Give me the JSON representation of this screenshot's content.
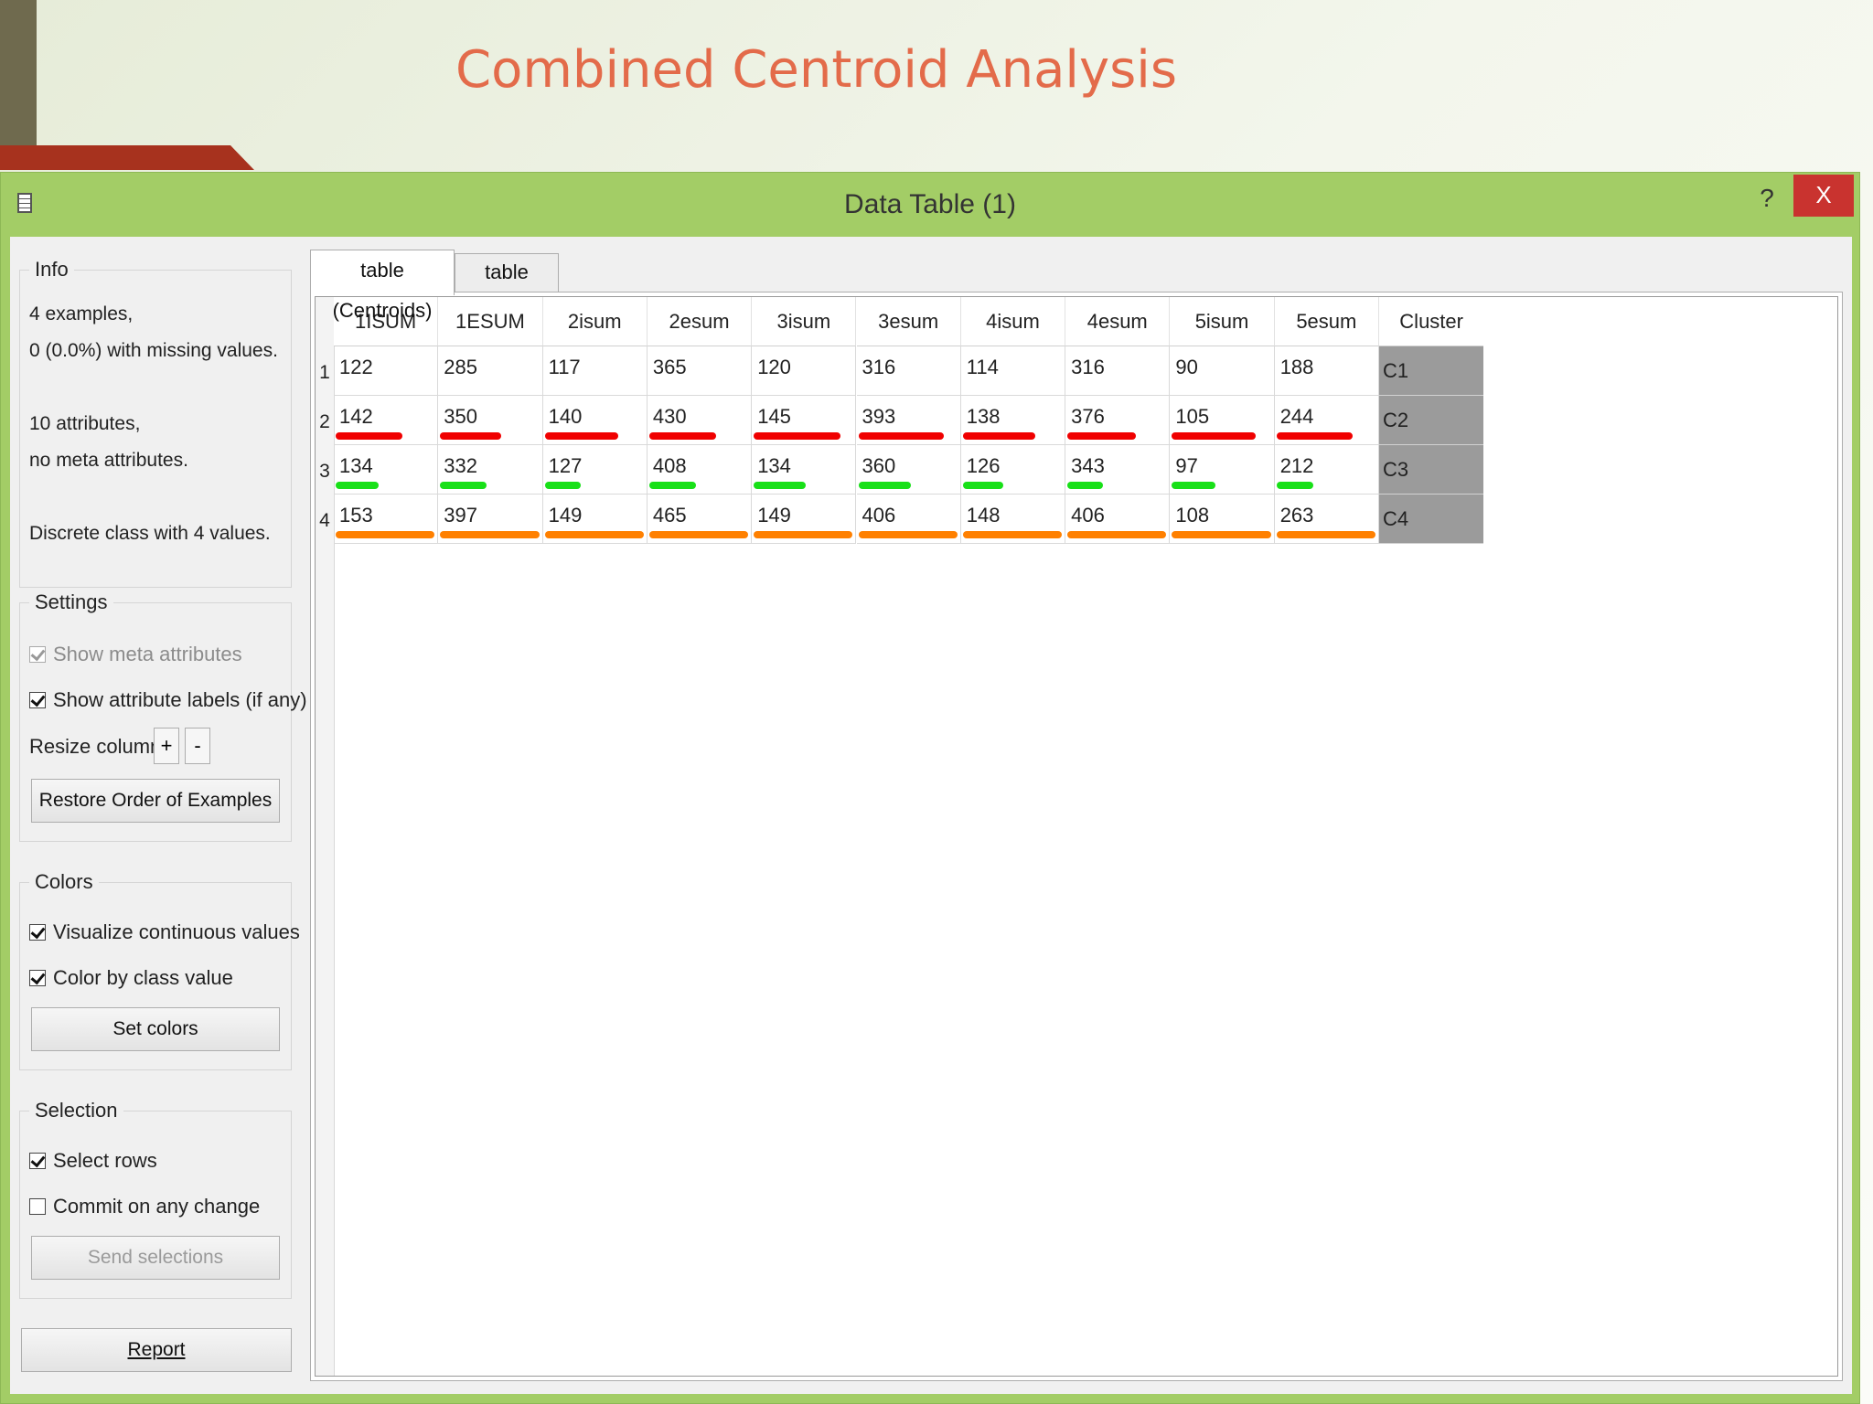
{
  "slide": {
    "title": "Combined Centroid Analysis"
  },
  "window": {
    "title": "Data Table (1)",
    "help_label": "?",
    "close_label": "X"
  },
  "info": {
    "legend": "Info",
    "lines": [
      "4 examples,",
      "0 (0.0%) with missing values.",
      "10 attributes,",
      "no meta attributes.",
      "Discrete class with 4 values."
    ]
  },
  "settings": {
    "legend": "Settings",
    "show_meta": {
      "label": "Show meta attributes",
      "checked": true,
      "disabled": true
    },
    "show_labels": {
      "label": "Show attribute labels (if any)",
      "checked": true
    },
    "resize_label": "Resize columns:",
    "plus_label": "+",
    "minus_label": "-",
    "restore_label": "Restore Order of Examples"
  },
  "colors": {
    "legend": "Colors",
    "visualize": {
      "label": "Visualize continuous values",
      "checked": true
    },
    "color_by_class": {
      "label": "Color by class value",
      "checked": true
    },
    "set_colors_label": "Set colors"
  },
  "selection": {
    "legend": "Selection",
    "select_rows": {
      "label": "Select rows",
      "checked": true
    },
    "commit": {
      "label": "Commit on any change",
      "checked": false
    },
    "send_label": "Send selections"
  },
  "report_label": "Report",
  "tabs": [
    {
      "label": "table (Centroids)",
      "active": true
    },
    {
      "label": "table (Data)",
      "active": false
    }
  ],
  "table": {
    "columns": [
      "1ISUM",
      "1ESUM",
      "2isum",
      "2esum",
      "3isum",
      "3esum",
      "4isum",
      "4esum",
      "5isum",
      "5esum"
    ],
    "class_column": "Cluster",
    "rows": [
      {
        "num": "1",
        "values": [
          122,
          285,
          117,
          365,
          120,
          316,
          114,
          316,
          90,
          188
        ],
        "cluster": "C1"
      },
      {
        "num": "2",
        "values": [
          142,
          350,
          140,
          430,
          145,
          393,
          138,
          376,
          105,
          244
        ],
        "cluster": "C2"
      },
      {
        "num": "3",
        "values": [
          134,
          332,
          127,
          408,
          134,
          360,
          126,
          343,
          97,
          212
        ],
        "cluster": "C3"
      },
      {
        "num": "4",
        "values": [
          153,
          397,
          149,
          465,
          149,
          406,
          148,
          406,
          108,
          263
        ],
        "cluster": "C4"
      }
    ],
    "class_colors": {
      "C1": "",
      "C2": "#f00000",
      "C3": "#18e018",
      "C4": "#ff8000"
    }
  }
}
